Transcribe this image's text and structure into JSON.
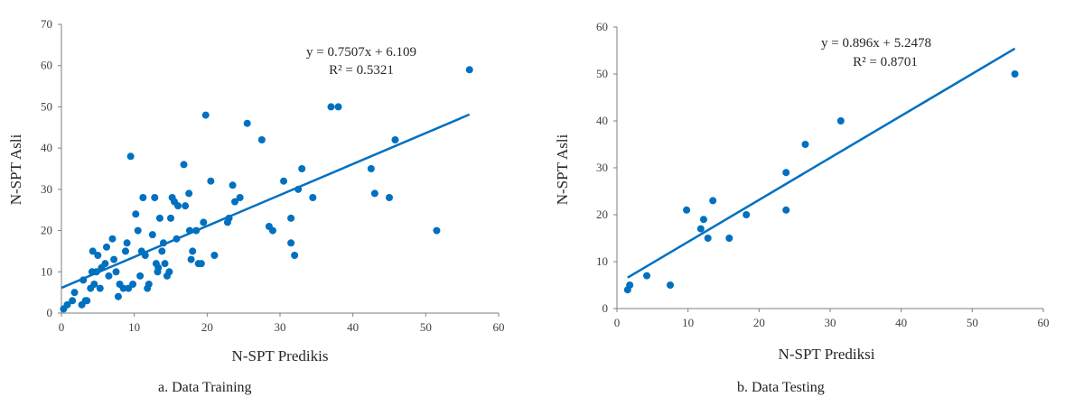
{
  "chart_data": [
    {
      "type": "scatter",
      "caption": "a. Data Training",
      "xlabel": "N-SPT Predikis",
      "ylabel": "N-SPT Asli",
      "xlim": [
        0,
        60
      ],
      "ylim": [
        0,
        70
      ],
      "xticks": [
        0,
        10,
        20,
        30,
        40,
        50,
        60
      ],
      "yticks": [
        0,
        10,
        20,
        30,
        40,
        50,
        60,
        70
      ],
      "color": "#0070c0",
      "grid": false,
      "trendline": {
        "slope": 0.7507,
        "intercept": 6.109,
        "x_range": [
          0,
          56
        ],
        "equation": "y = 0.7507x + 6.109",
        "r2": "R² = 0.5321"
      },
      "points": [
        [
          0.3,
          1
        ],
        [
          0.8,
          2
        ],
        [
          1.5,
          3
        ],
        [
          1.8,
          5
        ],
        [
          2.8,
          2
        ],
        [
          3.3,
          3
        ],
        [
          3.0,
          8
        ],
        [
          3.5,
          3
        ],
        [
          4.0,
          6
        ],
        [
          4.2,
          10
        ],
        [
          4.3,
          15
        ],
        [
          4.5,
          7
        ],
        [
          4.8,
          10
        ],
        [
          5.0,
          14
        ],
        [
          5.5,
          11
        ],
        [
          5.3,
          6
        ],
        [
          6.0,
          12
        ],
        [
          6.2,
          16
        ],
        [
          6.5,
          9
        ],
        [
          7.0,
          18
        ],
        [
          7.2,
          13
        ],
        [
          7.5,
          10
        ],
        [
          7.8,
          4
        ],
        [
          8.0,
          7
        ],
        [
          8.5,
          6
        ],
        [
          8.8,
          15
        ],
        [
          9.0,
          17
        ],
        [
          9.5,
          38
        ],
        [
          9.2,
          6
        ],
        [
          9.8,
          7
        ],
        [
          10.2,
          24
        ],
        [
          10.5,
          20
        ],
        [
          10.8,
          9
        ],
        [
          11.0,
          15
        ],
        [
          11.2,
          28
        ],
        [
          11.5,
          14
        ],
        [
          11.8,
          6
        ],
        [
          12.0,
          7
        ],
        [
          12.5,
          19
        ],
        [
          12.8,
          28
        ],
        [
          13.0,
          12
        ],
        [
          13.2,
          10
        ],
        [
          13.5,
          23
        ],
        [
          13.3,
          11
        ],
        [
          13.8,
          15
        ],
        [
          14.0,
          17
        ],
        [
          14.2,
          12
        ],
        [
          14.5,
          9
        ],
        [
          14.8,
          10
        ],
        [
          15.0,
          23
        ],
        [
          15.2,
          28
        ],
        [
          15.5,
          27
        ],
        [
          15.8,
          18
        ],
        [
          16.0,
          26
        ],
        [
          16.8,
          36
        ],
        [
          17.0,
          26
        ],
        [
          17.5,
          29
        ],
        [
          17.8,
          13
        ],
        [
          17.6,
          20
        ],
        [
          18.0,
          15
        ],
        [
          18.5,
          20
        ],
        [
          18.8,
          12
        ],
        [
          19.2,
          12
        ],
        [
          19.5,
          22
        ],
        [
          19.8,
          48
        ],
        [
          20.5,
          32
        ],
        [
          21.0,
          14
        ],
        [
          22.8,
          22
        ],
        [
          23.0,
          23
        ],
        [
          23.5,
          31
        ],
        [
          23.8,
          27
        ],
        [
          24.5,
          28
        ],
        [
          25.5,
          46
        ],
        [
          27.5,
          42
        ],
        [
          28.5,
          21
        ],
        [
          29.0,
          20
        ],
        [
          30.5,
          32
        ],
        [
          31.5,
          23
        ],
        [
          31.5,
          17
        ],
        [
          32.0,
          14
        ],
        [
          32.5,
          30
        ],
        [
          33.0,
          35
        ],
        [
          34.5,
          28
        ],
        [
          37.0,
          50
        ],
        [
          38.0,
          50
        ],
        [
          42.5,
          35
        ],
        [
          43.0,
          29
        ],
        [
          45.0,
          28
        ],
        [
          45.8,
          42
        ],
        [
          51.5,
          20
        ],
        [
          56.0,
          59
        ]
      ]
    },
    {
      "type": "scatter",
      "caption": "b. Data Testing",
      "xlabel": "N-SPT Prediksi",
      "ylabel": "N-SPT Asli",
      "xlim": [
        0,
        60
      ],
      "ylim": [
        0,
        60
      ],
      "xticks": [
        0,
        10,
        20,
        30,
        40,
        50,
        60
      ],
      "yticks": [
        0,
        10,
        20,
        30,
        40,
        50,
        60
      ],
      "color": "#0070c0",
      "grid": false,
      "trendline": {
        "slope": 0.896,
        "intercept": 5.2478,
        "x_range": [
          1.5,
          56
        ],
        "equation": "y = 0.896x + 5.2478",
        "r2": "R² = 0.8701"
      },
      "points": [
        [
          1.5,
          4
        ],
        [
          1.8,
          5
        ],
        [
          4.2,
          7
        ],
        [
          7.5,
          5
        ],
        [
          9.8,
          21
        ],
        [
          11.8,
          17
        ],
        [
          12.2,
          19
        ],
        [
          12.8,
          15
        ],
        [
          13.5,
          23
        ],
        [
          15.8,
          15
        ],
        [
          18.2,
          20
        ],
        [
          23.8,
          29
        ],
        [
          23.8,
          21
        ],
        [
          26.5,
          35
        ],
        [
          31.5,
          40
        ],
        [
          56.0,
          50
        ]
      ]
    }
  ]
}
